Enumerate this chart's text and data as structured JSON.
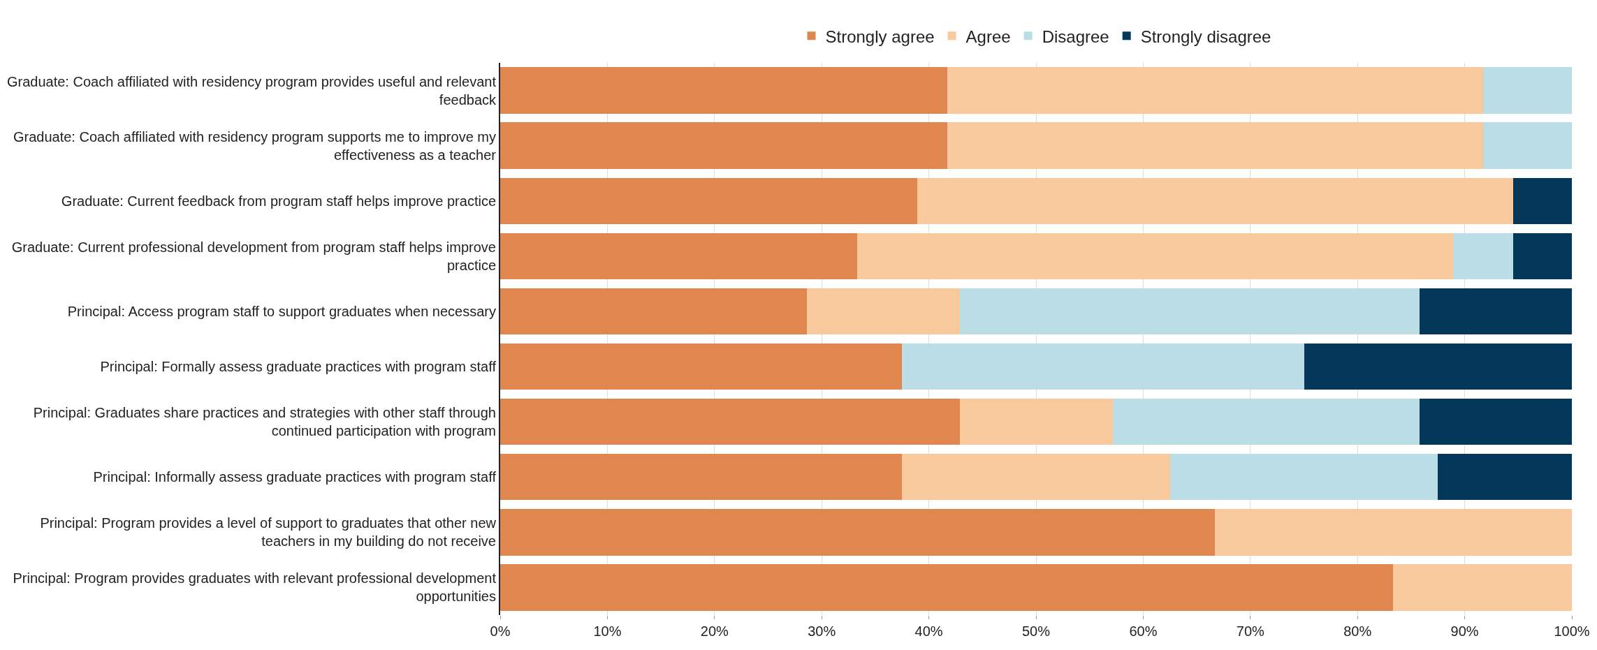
{
  "chart_data": {
    "type": "bar",
    "orientation": "horizontal",
    "stacked": true,
    "legend": "top",
    "grid": "x",
    "categories": [
      "Graduate: Coach affiliated with residency program provides useful and relevant feedback",
      "Graduate: Coach affiliated with residency program supports me to improve my effectiveness as a teacher",
      "Graduate: Current feedback from program staff helps improve practice",
      "Graduate: Current professional development from program staff helps improve practice",
      "Principal: Access program staff to support graduates when necessary",
      "Principal: Formally assess graduate practices with program staff",
      "Principal: Graduates share practices and strategies with other staff through continued participation with program",
      "Principal: Informally assess graduate practices with program staff",
      "Principal: Program provides a level of support to graduates that other new teachers in my building do not receive",
      "Principal: Program provides graduates with relevant professional development opportunities"
    ],
    "series": [
      {
        "name": "Strongly agree",
        "color": "#e0874f",
        "values": [
          41.7,
          41.7,
          38.9,
          33.3,
          28.6,
          37.5,
          42.9,
          37.5,
          66.7,
          83.3
        ]
      },
      {
        "name": "Agree",
        "color": "#f7c99c",
        "values": [
          50,
          50,
          55.6,
          55.6,
          14.3,
          0,
          14.3,
          25,
          33.3,
          16.7
        ]
      },
      {
        "name": "Disagree",
        "color": "#badde6",
        "values": [
          8.3,
          8.3,
          0,
          5.6,
          42.9,
          37.5,
          28.6,
          25,
          0,
          0
        ]
      },
      {
        "name": "Strongly disagree",
        "color": "#03385a",
        "values": [
          0,
          0,
          5.6,
          5.6,
          14.3,
          25,
          14.3,
          12.5,
          0,
          0
        ]
      }
    ],
    "xlim": [
      0,
      100
    ],
    "xticks": [
      {
        "value": 0,
        "label": "0%"
      },
      {
        "value": 10,
        "label": "10%"
      },
      {
        "value": 20,
        "label": "20%"
      },
      {
        "value": 30,
        "label": "30%"
      },
      {
        "value": 40,
        "label": "40%"
      },
      {
        "value": 50,
        "label": "50%"
      },
      {
        "value": 60,
        "label": "60%"
      },
      {
        "value": 70,
        "label": "70%"
      },
      {
        "value": 80,
        "label": "80%"
      },
      {
        "value": 90,
        "label": "90%"
      },
      {
        "value": 100,
        "label": "100%"
      }
    ]
  }
}
